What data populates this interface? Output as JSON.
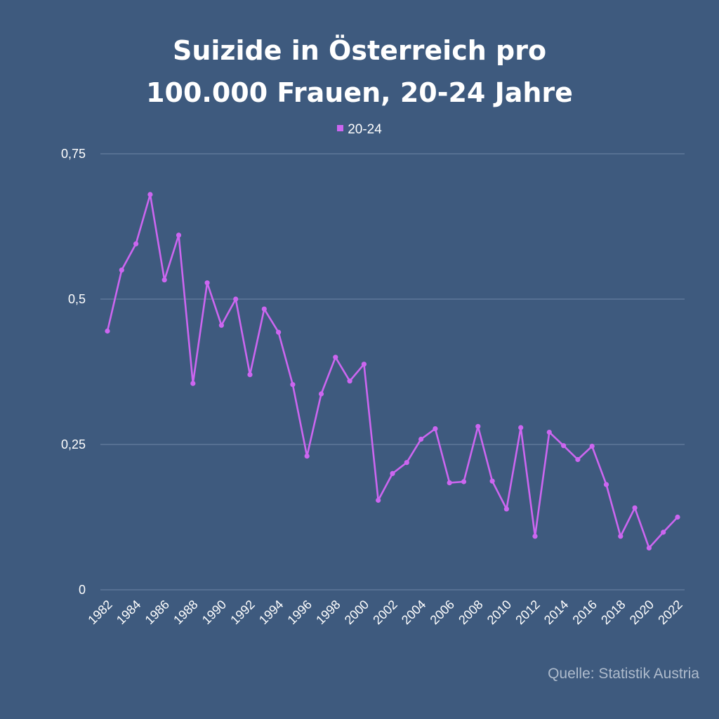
{
  "chart_data": {
    "type": "line",
    "title_lines": [
      "Suizide in Österreich pro",
      "100.000 Frauen, 20-24 Jahre"
    ],
    "legend_position": "top-center",
    "grid": true,
    "ylim": [
      0,
      0.75
    ],
    "y_ticks": [
      {
        "value": 0,
        "label": "0"
      },
      {
        "value": 0.25,
        "label": "0,25"
      },
      {
        "value": 0.5,
        "label": "0,5"
      },
      {
        "value": 0.75,
        "label": "0,75"
      }
    ],
    "x_tick_labels": [
      "1982",
      "1984",
      "1986",
      "1988",
      "1990",
      "1992",
      "1994",
      "1996",
      "1998",
      "2000",
      "2002",
      "2004",
      "2006",
      "2008",
      "2010",
      "2012",
      "2014",
      "2016",
      "2018",
      "2020",
      "2022"
    ],
    "x": [
      1982,
      1983,
      1984,
      1985,
      1986,
      1987,
      1988,
      1989,
      1990,
      1991,
      1992,
      1993,
      1994,
      1995,
      1996,
      1997,
      1998,
      1999,
      2000,
      2001,
      2002,
      2003,
      2004,
      2005,
      2006,
      2007,
      2008,
      2009,
      2010,
      2011,
      2012,
      2013,
      2014,
      2015,
      2016,
      2017,
      2018,
      2019,
      2020,
      2021,
      2022
    ],
    "series": [
      {
        "name": "20-24",
        "color": "#cc66f0",
        "values": [
          0.445,
          0.55,
          0.595,
          0.68,
          0.533,
          0.61,
          0.355,
          0.528,
          0.455,
          0.5,
          0.37,
          0.483,
          0.443,
          0.353,
          0.23,
          0.337,
          0.4,
          0.359,
          0.388,
          0.154,
          0.2,
          0.219,
          0.259,
          0.277,
          0.184,
          0.186,
          0.281,
          0.187,
          0.139,
          0.279,
          0.092,
          0.271,
          0.248,
          0.224,
          0.247,
          0.181,
          0.092,
          0.141,
          0.072,
          0.099,
          0.125
        ]
      }
    ]
  },
  "source": "Quelle: Statistik Austria"
}
